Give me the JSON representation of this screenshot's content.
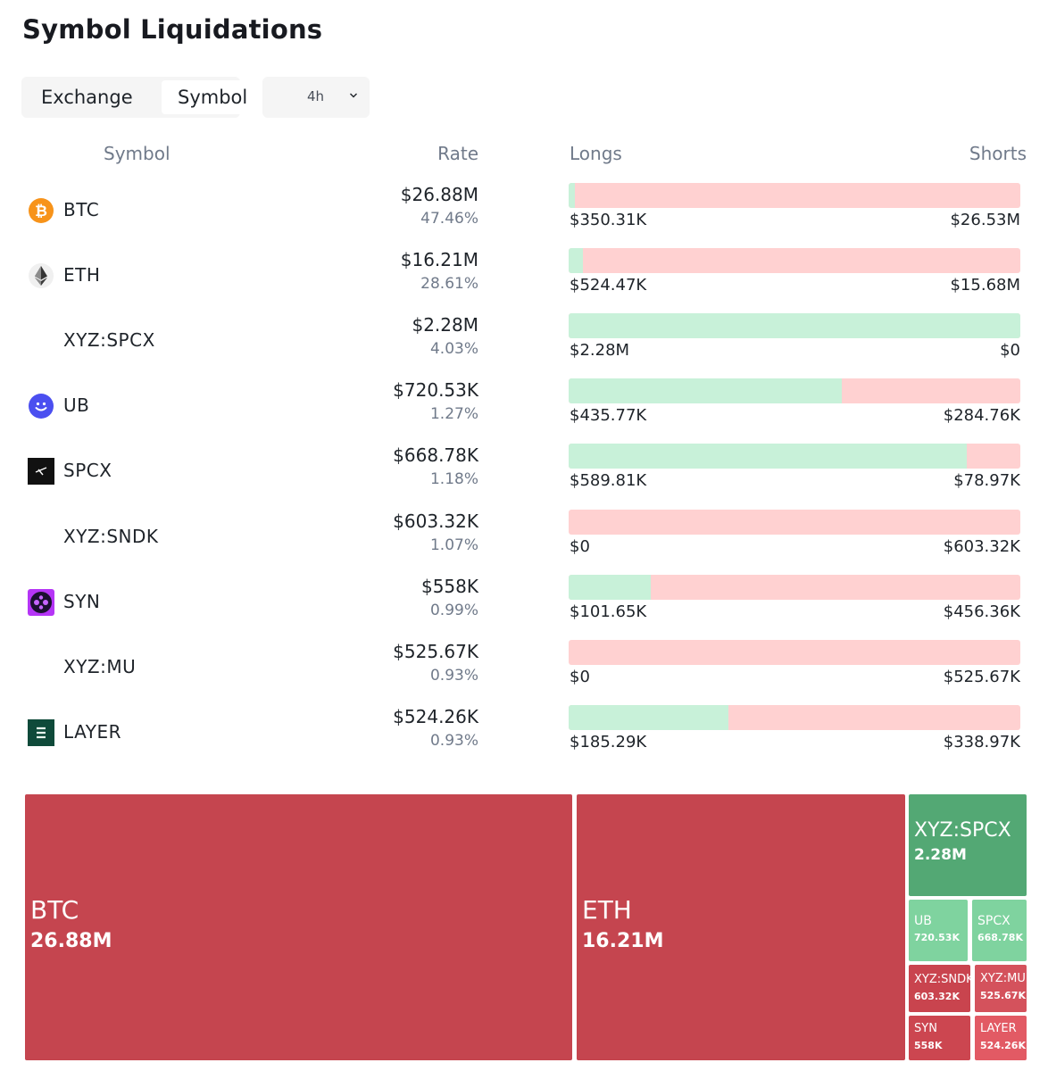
{
  "title": "Symbol Liquidations",
  "tabs": {
    "exchange": "Exchange",
    "symbol": "Symbol"
  },
  "period": {
    "value": "4h"
  },
  "columns": {
    "symbol": "Symbol",
    "rate": "Rate",
    "longs": "Longs",
    "shorts": "Shorts"
  },
  "colors": {
    "long": "#c8f1d9",
    "short": "#ffd1d1",
    "treemap_red": "#c5454f",
    "treemap_green": "#53a874"
  },
  "rows": [
    {
      "symbol": "BTC",
      "icon": "bitcoin-icon",
      "rate": "$26.88M",
      "pct": "47.46%",
      "long_share": 0.013,
      "longs": "$350.31K",
      "shorts": "$26.53M"
    },
    {
      "symbol": "ETH",
      "icon": "ethereum-icon",
      "rate": "$16.21M",
      "pct": "28.61%",
      "long_share": 0.032,
      "longs": "$524.47K",
      "shorts": "$15.68M"
    },
    {
      "symbol": "XYZ:SPCX",
      "icon": "",
      "rate": "$2.28M",
      "pct": "4.03%",
      "long_share": 1.0,
      "longs": "$2.28M",
      "shorts": "$0"
    },
    {
      "symbol": "UB",
      "icon": "ub-icon",
      "rate": "$720.53K",
      "pct": "1.27%",
      "long_share": 0.605,
      "longs": "$435.77K",
      "shorts": "$284.76K"
    },
    {
      "symbol": "SPCX",
      "icon": "spcx-icon",
      "rate": "$668.78K",
      "pct": "1.18%",
      "long_share": 0.882,
      "longs": "$589.81K",
      "shorts": "$78.97K"
    },
    {
      "symbol": "XYZ:SNDK",
      "icon": "",
      "rate": "$603.32K",
      "pct": "1.07%",
      "long_share": 0.0,
      "longs": "$0",
      "shorts": "$603.32K"
    },
    {
      "symbol": "SYN",
      "icon": "syn-icon",
      "rate": "$558K",
      "pct": "0.99%",
      "long_share": 0.182,
      "longs": "$101.65K",
      "shorts": "$456.36K"
    },
    {
      "symbol": "XYZ:MU",
      "icon": "",
      "rate": "$525.67K",
      "pct": "0.93%",
      "long_share": 0.0,
      "longs": "$0",
      "shorts": "$525.67K"
    },
    {
      "symbol": "LAYER",
      "icon": "layer-icon",
      "rate": "$524.26K",
      "pct": "0.93%",
      "long_share": 0.353,
      "longs": "$185.29K",
      "shorts": "$338.97K"
    }
  ],
  "treemap": [
    {
      "name": "BTC",
      "value": "26.88M",
      "side": "short"
    },
    {
      "name": "ETH",
      "value": "16.21M",
      "side": "short"
    },
    {
      "name": "XYZ:SPCX",
      "value": "2.28M",
      "side": "long"
    },
    {
      "name": "UB",
      "value": "720.53K",
      "side": "long"
    },
    {
      "name": "SPCX",
      "value": "668.78K",
      "side": "long"
    },
    {
      "name": "XYZ:SNDK",
      "value": "603.32K",
      "side": "short"
    },
    {
      "name": "XYZ:MU",
      "value": "525.67K",
      "side": "short"
    },
    {
      "name": "SYN",
      "value": "558K",
      "side": "short"
    },
    {
      "name": "LAYER",
      "value": "524.26K",
      "side": "short"
    }
  ]
}
